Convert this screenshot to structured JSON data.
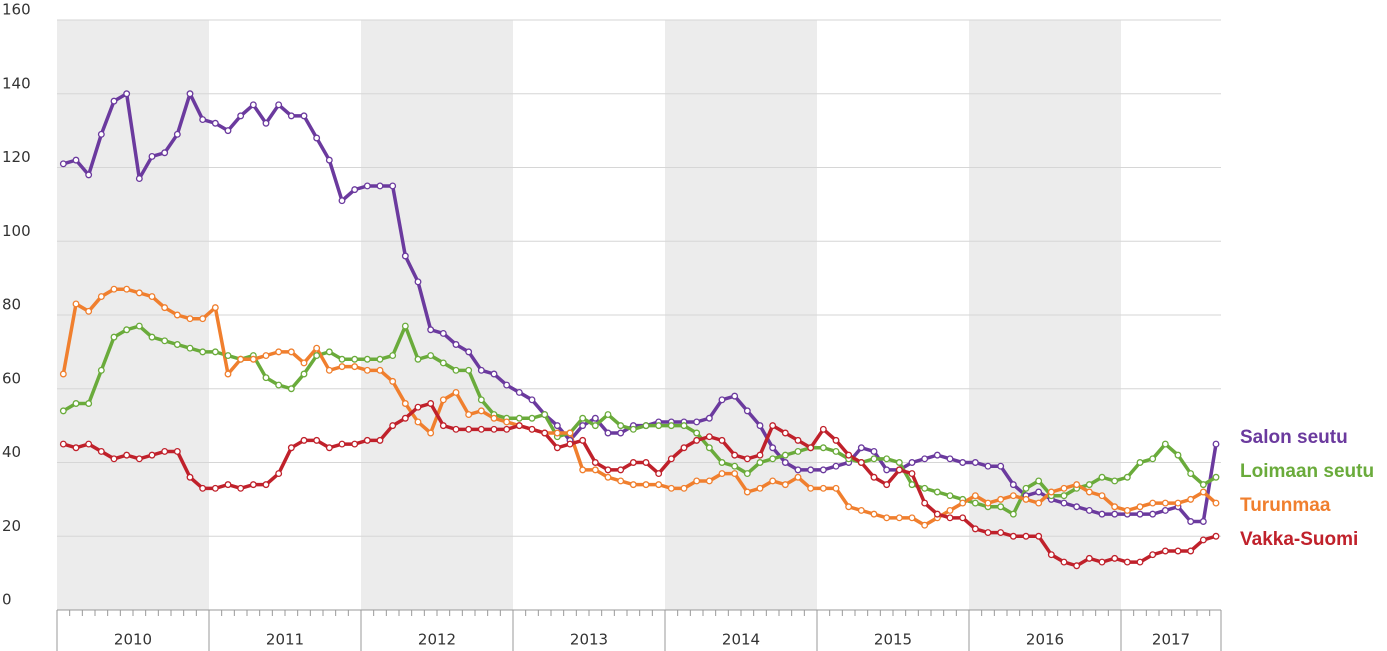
{
  "chart_data": {
    "type": "line",
    "years": [
      "2010",
      "2011",
      "2012",
      "2013",
      "2014",
      "2015",
      "2016",
      "2017"
    ],
    "ylim": [
      0,
      160
    ],
    "yticks": [
      0,
      20,
      40,
      60,
      80,
      100,
      120,
      140,
      160
    ],
    "grid": true,
    "series": [
      {
        "name": "Salon seutu",
        "color": "#6b3a9e",
        "values": [
          121,
          122,
          118,
          129,
          138,
          140,
          117,
          123,
          124,
          129,
          140,
          133,
          132,
          130,
          134,
          137,
          132,
          137,
          134,
          134,
          128,
          122,
          111,
          114,
          115,
          115,
          115,
          96,
          89,
          76,
          75,
          72,
          70,
          65,
          64,
          61,
          59,
          57,
          53,
          50,
          46,
          50,
          52,
          48,
          48,
          50,
          50,
          51,
          51,
          51,
          51,
          52,
          57,
          58,
          54,
          50,
          44,
          40,
          38,
          38,
          38,
          39,
          40,
          44,
          43,
          38,
          38,
          40,
          41,
          42,
          41,
          40,
          40,
          39,
          39,
          34,
          31,
          32,
          30,
          29,
          28,
          27,
          26,
          26,
          26,
          26,
          26,
          27,
          28,
          24,
          24,
          45
        ]
      },
      {
        "name": "Loimaan seutu",
        "color": "#6aab3b",
        "values": [
          54,
          56,
          56,
          65,
          74,
          76,
          77,
          74,
          73,
          72,
          71,
          70,
          70,
          69,
          68,
          69,
          63,
          61,
          60,
          64,
          69,
          70,
          68,
          68,
          68,
          68,
          69,
          77,
          68,
          69,
          67,
          65,
          65,
          57,
          53,
          52,
          52,
          52,
          53,
          47,
          48,
          52,
          50,
          53,
          50,
          49,
          50,
          50,
          50,
          50,
          48,
          44,
          40,
          39,
          37,
          40,
          41,
          42,
          43,
          44,
          44,
          43,
          41,
          40,
          41,
          41,
          40,
          34,
          33,
          32,
          31,
          30,
          29,
          28,
          28,
          26,
          33,
          35,
          31,
          31,
          33,
          34,
          36,
          35,
          36,
          40,
          41,
          45,
          42,
          37,
          34,
          36
        ]
      },
      {
        "name": "Turunmaa",
        "color": "#f07f2e",
        "values": [
          64,
          83,
          81,
          85,
          87,
          87,
          86,
          85,
          82,
          80,
          79,
          79,
          82,
          64,
          68,
          68,
          69,
          70,
          70,
          67,
          71,
          65,
          66,
          66,
          65,
          65,
          62,
          56,
          51,
          48,
          57,
          59,
          53,
          54,
          52,
          51,
          50,
          49,
          48,
          48,
          48,
          38,
          38,
          36,
          35,
          34,
          34,
          34,
          33,
          33,
          35,
          35,
          37,
          37,
          32,
          33,
          35,
          34,
          36,
          33,
          33,
          33,
          28,
          27,
          26,
          25,
          25,
          25,
          23,
          25,
          27,
          29,
          31,
          29,
          30,
          31,
          30,
          29,
          32,
          33,
          34,
          32,
          31,
          28,
          27,
          28,
          29,
          29,
          29,
          30,
          32,
          29
        ]
      },
      {
        "name": "Vakka-Suomi",
        "color": "#c0212b",
        "values": [
          45,
          44,
          45,
          43,
          41,
          42,
          41,
          42,
          43,
          43,
          36,
          33,
          33,
          34,
          33,
          34,
          34,
          37,
          44,
          46,
          46,
          44,
          45,
          45,
          46,
          46,
          50,
          52,
          55,
          56,
          50,
          49,
          49,
          49,
          49,
          49,
          50,
          49,
          48,
          44,
          45,
          46,
          40,
          38,
          38,
          40,
          40,
          37,
          41,
          44,
          46,
          47,
          46,
          42,
          41,
          42,
          50,
          48,
          46,
          44,
          49,
          46,
          42,
          40,
          36,
          34,
          38,
          37,
          29,
          26,
          25,
          25,
          22,
          21,
          21,
          20,
          20,
          20,
          15,
          13,
          12,
          14,
          13,
          14,
          13,
          13,
          15,
          16,
          16,
          16,
          19,
          20
        ]
      }
    ]
  }
}
